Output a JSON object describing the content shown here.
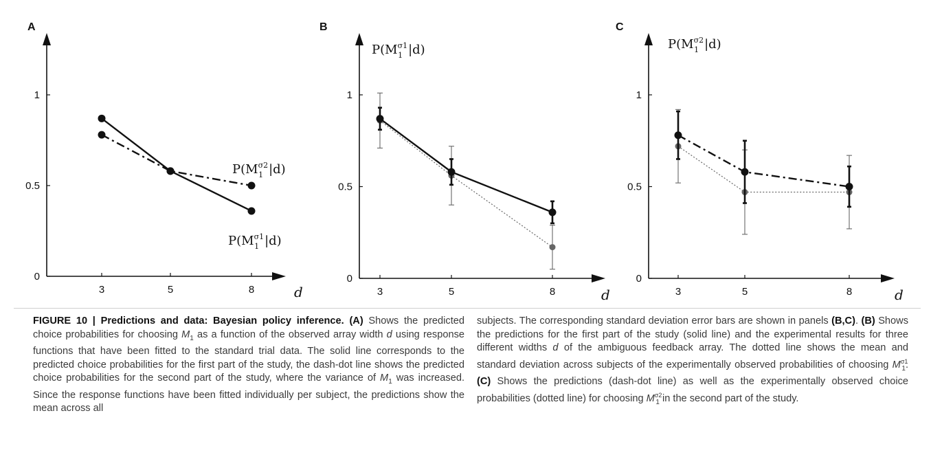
{
  "chart_data": [
    {
      "panel": "A",
      "type": "line",
      "xlabel": "d",
      "x": [
        3,
        5,
        8
      ],
      "yticks": [
        "0",
        "0.5",
        "1"
      ],
      "xticks": [
        "3",
        "5",
        "8"
      ],
      "ylim": [
        0,
        1.4
      ],
      "series": [
        {
          "name": "P(M1^σ1|d)",
          "style": "solid",
          "values": [
            0.87,
            0.58,
            0.36
          ]
        },
        {
          "name": "P(M1^σ2|d)",
          "style": "dash-dot",
          "values": [
            0.78,
            0.58,
            0.5
          ]
        }
      ]
    },
    {
      "panel": "B",
      "type": "line",
      "title": "P(M1^σ1|d)",
      "xlabel": "d",
      "x": [
        3,
        5,
        8
      ],
      "yticks": [
        "0",
        "0.5",
        "1"
      ],
      "xticks": [
        "3",
        "5",
        "8"
      ],
      "ylim": [
        0,
        1.4
      ],
      "series": [
        {
          "name": "prediction",
          "style": "solid",
          "values": [
            0.87,
            0.58,
            0.36
          ],
          "err": [
            0.06,
            0.07,
            0.06
          ]
        },
        {
          "name": "data",
          "style": "dotted",
          "values": [
            0.86,
            0.56,
            0.17
          ],
          "err": [
            0.15,
            0.16,
            0.12
          ]
        }
      ]
    },
    {
      "panel": "C",
      "type": "line",
      "title": "P(M1^σ2|d)",
      "xlabel": "d",
      "x": [
        3,
        5,
        8
      ],
      "yticks": [
        "0",
        "0.5",
        "1"
      ],
      "xticks": [
        "3",
        "5",
        "8"
      ],
      "ylim": [
        0,
        1.4
      ],
      "series": [
        {
          "name": "prediction",
          "style": "dash-dot",
          "values": [
            0.78,
            0.58,
            0.5
          ],
          "err": [
            0.13,
            0.17,
            0.11
          ]
        },
        {
          "name": "data",
          "style": "dotted",
          "values": [
            0.72,
            0.47,
            0.47
          ],
          "err": [
            0.2,
            0.23,
            0.2
          ]
        }
      ]
    }
  ],
  "figure": {
    "panel_labels": [
      "A",
      "B",
      "C"
    ],
    "xaxis_label": "d",
    "label_a_sigma2": {
      "pre": "P(M",
      "sub": "1",
      "sup": "σ2",
      "post": "|d)"
    },
    "label_a_sigma1": {
      "pre": "P(M",
      "sub": "1",
      "sup": "σ1",
      "post": "|d)"
    },
    "title_b": {
      "pre": "P(M",
      "sub": "1",
      "sup": "σ1",
      "post": "|d)"
    },
    "title_c": {
      "pre": "P(M",
      "sub": "1",
      "sup": "σ2",
      "post": "|d)"
    }
  },
  "caption": {
    "figure_label": "FIGURE 10 | Predictions and data: Bayesian policy inference.",
    "left": [
      {
        "t": "b",
        "v": "(A)"
      },
      {
        "t": "s",
        "v": " Shows the predicted choice probabilities for choosing "
      },
      {
        "t": "m",
        "v": "M",
        "sub": "1"
      },
      {
        "t": "s",
        "v": " as a function of the observed array width "
      },
      {
        "t": "i",
        "v": "d"
      },
      {
        "t": "s",
        "v": " using response functions that have been fitted to the standard trial data. The solid line corresponds to the predicted choice probabilities for the first part of the study, the dash-dot line shows the predicted choice probabilities for the second part of the study, where the variance of "
      },
      {
        "t": "m",
        "v": "M",
        "sub": "1"
      },
      {
        "t": "s",
        "v": " was increased. Since the response functions have been fitted individually per subject, the predictions show the mean across all"
      }
    ],
    "right": [
      {
        "t": "s",
        "v": "subjects. The corresponding standard deviation error bars are shown in panels "
      },
      {
        "t": "b",
        "v": "(B,C)"
      },
      {
        "t": "s",
        "v": ". "
      },
      {
        "t": "b",
        "v": "(B)"
      },
      {
        "t": "s",
        "v": " Shows the predictions for the first part of the study (solid line) and the experimental results for three different widths "
      },
      {
        "t": "i",
        "v": "d"
      },
      {
        "t": "s",
        "v": " of the ambiguous feedback array. The dotted line shows the mean and standard deviation across subjects of the experimentally observed probabilities of choosing "
      },
      {
        "t": "m",
        "v": "M",
        "sub": "1",
        "sup": "σ1"
      },
      {
        "t": "s",
        "v": ". "
      },
      {
        "t": "b",
        "v": "(C)"
      },
      {
        "t": "s",
        "v": " Shows the predictions (dash-dot line) as well as the experimentally observed choice probabilities (dotted line) for choosing "
      },
      {
        "t": "m",
        "v": "M",
        "sub": "1",
        "sup": "σ2"
      },
      {
        "t": "s",
        "v": " in the second part of the study."
      }
    ]
  }
}
